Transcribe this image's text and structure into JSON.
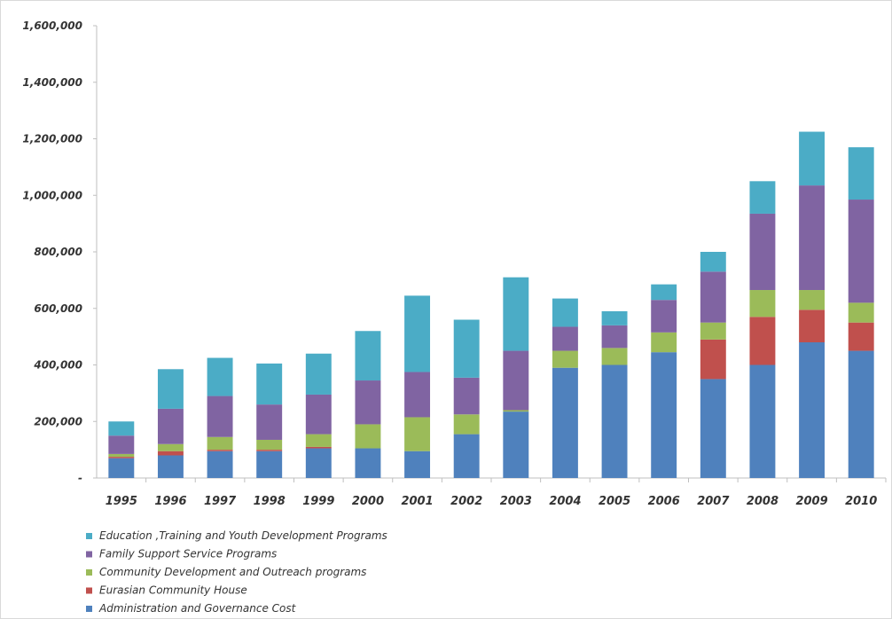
{
  "chart_data": {
    "type": "bar",
    "stacked": true,
    "title": "",
    "xlabel": "",
    "ylabel": "",
    "ylim": [
      0,
      1600000
    ],
    "y_ticks": [
      0,
      200000,
      400000,
      600000,
      800000,
      1000000,
      1200000,
      1400000,
      1600000
    ],
    "y_tick_labels": [
      "-",
      "200,000",
      "400,000",
      "600,000",
      "800,000",
      "1,000,000",
      "1,200,000",
      "1,400,000",
      "1,600,000"
    ],
    "grid": false,
    "legend_position": "bottom-left",
    "categories": [
      "1995",
      "1996",
      "1997",
      "1998",
      "1999",
      "2000",
      "2001",
      "2002",
      "2003",
      "2004",
      "2005",
      "2006",
      "2007",
      "2008",
      "2009",
      "2010"
    ],
    "series": [
      {
        "name": "Administration and Governance Cost",
        "color": "#4f81bd",
        "values": [
          70000,
          80000,
          95000,
          95000,
          105000,
          105000,
          95000,
          155000,
          235000,
          390000,
          400000,
          445000,
          350000,
          400000,
          480000,
          450000
        ]
      },
      {
        "name": "Eurasian Community House",
        "color": "#c0504d",
        "values": [
          5000,
          15000,
          5000,
          5000,
          5000,
          0,
          0,
          0,
          0,
          0,
          0,
          0,
          140000,
          170000,
          115000,
          100000
        ]
      },
      {
        "name": "Community Development and Outreach programs",
        "color": "#9bbb59",
        "values": [
          10000,
          25000,
          45000,
          35000,
          45000,
          85000,
          120000,
          70000,
          5000,
          60000,
          60000,
          70000,
          60000,
          95000,
          70000,
          70000
        ]
      },
      {
        "name": "Family Support Service Programs",
        "color": "#8064a2",
        "values": [
          65000,
          125000,
          145000,
          125000,
          140000,
          155000,
          160000,
          130000,
          210000,
          85000,
          80000,
          115000,
          180000,
          270000,
          370000,
          365000
        ]
      },
      {
        "name": "Education ,Training and Youth Development Programs",
        "color": "#4bacc6",
        "values": [
          50000,
          140000,
          135000,
          145000,
          145000,
          175000,
          270000,
          205000,
          260000,
          100000,
          50000,
          55000,
          70000,
          115000,
          190000,
          185000
        ]
      }
    ],
    "legend_order": [
      4,
      3,
      2,
      1,
      0
    ]
  }
}
